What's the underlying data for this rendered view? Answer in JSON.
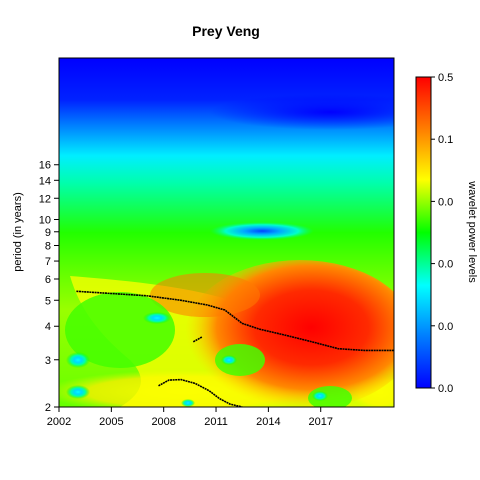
{
  "chart_data": {
    "type": "heatmap",
    "title": "Prey Veng",
    "xlabel": "",
    "ylabel": "period (in years)",
    "x_ticks": [
      "2002",
      "2005",
      "2008",
      "2011",
      "2014",
      "2017"
    ],
    "x_tick_values": [
      2002,
      2005,
      2008,
      2011,
      2014,
      2017
    ],
    "xlim": [
      2002,
      2021.2
    ],
    "y_ticks": [
      "2",
      "3",
      "4",
      "5",
      "6",
      "7",
      "8",
      "9",
      "10",
      "12",
      "14",
      "16"
    ],
    "y_tick_values": [
      2,
      3,
      4,
      5,
      6,
      7,
      8,
      9,
      10,
      12,
      14,
      16
    ],
    "ylim": [
      2,
      40
    ],
    "y_scale": "log",
    "colorbar": {
      "label": "wavelet power levels",
      "tick_labels": [
        "0.5",
        "0.1",
        "0.0",
        "0.0",
        "0.0",
        "0.0"
      ],
      "colors": [
        "#ff0000",
        "#ff8000",
        "#ffff00",
        "#00ff00",
        "#00ffff",
        "#0080ff",
        "#0000ff"
      ]
    },
    "significance_contour": [
      [
        2003,
        5.4
      ],
      [
        2005,
        5.3
      ],
      [
        2007,
        5.2
      ],
      [
        2009,
        5.0
      ],
      [
        2010.5,
        4.8
      ],
      [
        2011.5,
        4.6
      ],
      [
        2012.5,
        4.1
      ],
      [
        2013.5,
        3.9
      ],
      [
        2015,
        3.7
      ],
      [
        2016.5,
        3.5
      ],
      [
        2018,
        3.3
      ],
      [
        2019.5,
        3.25
      ],
      [
        2021.2,
        3.25
      ]
    ],
    "cone_fragment_1": [
      [
        2009.7,
        3.5
      ],
      [
        2010.2,
        3.65
      ]
    ],
    "cone_fragment_2": [
      [
        2007.7,
        2.4
      ],
      [
        2008.3,
        2.52
      ],
      [
        2009.0,
        2.53
      ],
      [
        2009.8,
        2.45
      ],
      [
        2010.6,
        2.3
      ],
      [
        2011.2,
        2.15
      ],
      [
        2011.8,
        2.05
      ],
      [
        2012.5,
        2.0
      ]
    ]
  }
}
